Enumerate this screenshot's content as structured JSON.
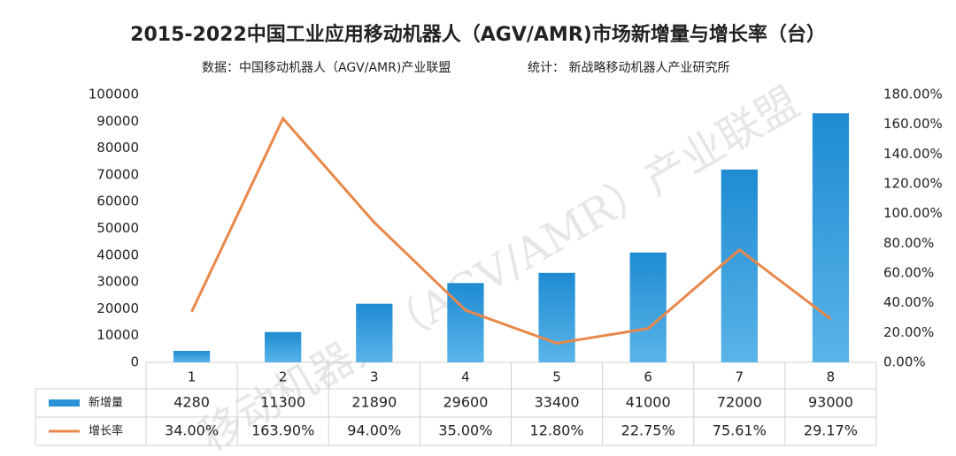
{
  "chart_data": {
    "type": "bar",
    "title": "2015-2022中国工业应用移动机器人（AGV/AMR)市场新增量与增长率（台）",
    "subtitle": [
      "数据：中国移动机器人（AGV/AMR)产业联盟",
      "统计： 新战略移动机器人产业研究所"
    ],
    "watermark": "移动机器人（AGV/AMR）产业联盟",
    "categories": [
      "1",
      "2",
      "3",
      "4",
      "5",
      "6",
      "7",
      "8"
    ],
    "series": [
      {
        "name": "新增量",
        "color": "#2b93d8",
        "type": "bar",
        "values": [
          4280,
          11300,
          21890,
          29600,
          33400,
          41000,
          72000,
          93000
        ]
      },
      {
        "name": "增长率",
        "color": "#e8884a",
        "type": "line",
        "axis": "y2",
        "values": [
          34,
          163.9,
          94,
          35,
          12.8,
          22.75,
          75.61,
          29.17
        ],
        "value_labels": [
          "34.00%",
          "163.90%",
          "94.00%",
          "35.00%",
          "12.80%",
          "22.75%",
          "75.61%",
          "29.17%"
        ]
      }
    ],
    "ylim": [
      0,
      100000
    ],
    "yticks": [
      0,
      10000,
      20000,
      30000,
      40000,
      50000,
      60000,
      70000,
      80000,
      90000,
      100000
    ],
    "y2lim": [
      0,
      180
    ],
    "y2ticks": [
      {
        "value": 0,
        "label": "0.00%"
      },
      {
        "value": 20,
        "label": "20.00%"
      },
      {
        "value": 40,
        "label": "40.00%"
      },
      {
        "value": 60,
        "label": "60.00%"
      },
      {
        "value": 80,
        "label": "80.00%"
      },
      {
        "value": 100,
        "label": "100.00%"
      },
      {
        "value": 120,
        "label": "120.00%"
      },
      {
        "value": 140,
        "label": "140.00%"
      },
      {
        "value": 160,
        "label": "160.00%"
      },
      {
        "value": 180,
        "label": "180.00%"
      }
    ],
    "grid": false
  }
}
